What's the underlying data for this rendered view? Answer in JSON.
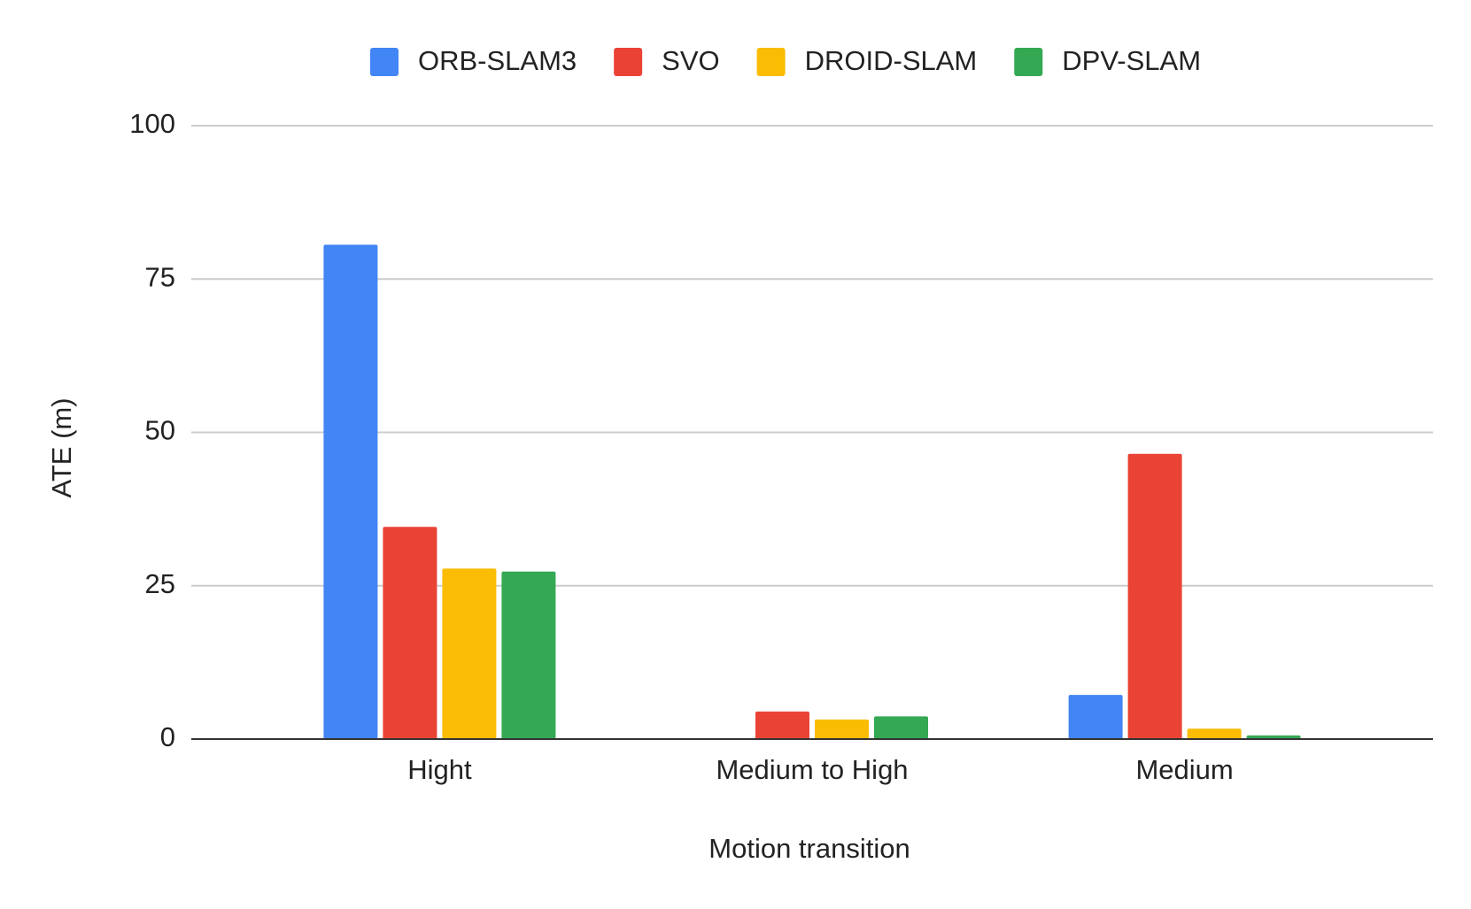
{
  "chart_data": {
    "type": "bar",
    "x_label": "Motion transition",
    "y_label": "ATE (m)",
    "categories": [
      "Hight",
      "Medium to High",
      "Medium"
    ],
    "series": [
      {
        "name": "ORB-SLAM3",
        "color": "#4285f4",
        "values": [
          80.6,
          null,
          7.2
        ]
      },
      {
        "name": "SVO",
        "color": "#ea4335",
        "values": [
          34.6,
          4.5,
          46.5
        ]
      },
      {
        "name": "DROID-SLAM",
        "color": "#fbbc04",
        "values": [
          27.8,
          3.2,
          1.7
        ]
      },
      {
        "name": "DPV-SLAM",
        "color": "#34a853",
        "values": [
          27.3,
          3.7,
          0.6
        ]
      }
    ],
    "ylim": [
      0,
      100
    ],
    "yticks": [
      0,
      25,
      50,
      75,
      100
    ],
    "grid": true,
    "legend": "top"
  }
}
